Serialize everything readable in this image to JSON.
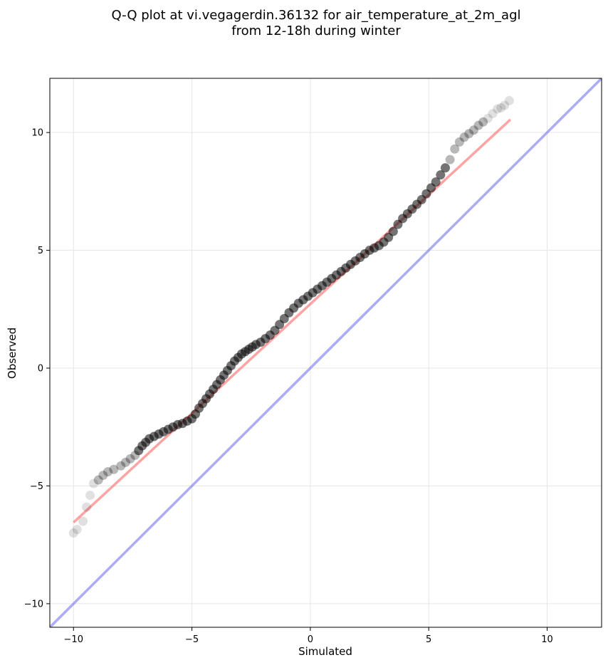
{
  "chart_data": {
    "type": "scatter",
    "title_lines": [
      "Q-Q plot at vi.vegagerdin.36132 for air_temperature_at_2m_agl",
      "from 12-18h during winter"
    ],
    "xlabel": "Simulated",
    "ylabel": "Observed",
    "xlim": [
      -11,
      12.3
    ],
    "ylim": [
      -11,
      12.3
    ],
    "xticks": [
      -10,
      -5,
      0,
      5,
      10
    ],
    "yticks": [
      -10,
      -5,
      0,
      5,
      10
    ],
    "xtick_labels": [
      "−10",
      "−5",
      "0",
      "5",
      "10"
    ],
    "ytick_labels": [
      "−10",
      "−5",
      "0",
      "5",
      "10"
    ],
    "grid": true,
    "colors": {
      "points": "#000000",
      "fit_line": "#ff6666",
      "identity_line": "#6666ee",
      "grid": "#e6e6e6"
    },
    "reference_lines": [
      {
        "kind": "fit",
        "x": [
          -10,
          8.45
        ],
        "y": [
          -6.55,
          10.55
        ]
      },
      {
        "kind": "identity",
        "x": [
          -11,
          12.3
        ],
        "y": [
          -11,
          12.3
        ]
      }
    ],
    "quantile_points": {
      "x": [
        -10.0,
        -9.85,
        -9.6,
        -9.45,
        -9.3,
        -9.15,
        -8.95,
        -8.75,
        -8.55,
        -8.3,
        -8.0,
        -7.8,
        -7.6,
        -7.4,
        -7.25,
        -7.1,
        -6.95,
        -6.8,
        -6.6,
        -6.4,
        -6.2,
        -6.0,
        -5.8,
        -5.6,
        -5.4,
        -5.2,
        -5.0,
        -4.85,
        -4.7,
        -4.55,
        -4.4,
        -4.25,
        -4.1,
        -3.95,
        -3.8,
        -3.65,
        -3.5,
        -3.35,
        -3.2,
        -3.05,
        -2.9,
        -2.75,
        -2.6,
        -2.45,
        -2.3,
        -2.1,
        -1.9,
        -1.7,
        -1.5,
        -1.3,
        -1.1,
        -0.9,
        -0.7,
        -0.5,
        -0.3,
        -0.1,
        0.1,
        0.3,
        0.5,
        0.7,
        0.9,
        1.1,
        1.3,
        1.5,
        1.7,
        1.9,
        2.1,
        2.3,
        2.5,
        2.7,
        2.9,
        3.1,
        3.3,
        3.5,
        3.7,
        3.9,
        4.1,
        4.3,
        4.5,
        4.7,
        4.9,
        5.1,
        5.3,
        5.5,
        5.7,
        5.9,
        6.1,
        6.3,
        6.5,
        6.7,
        6.9,
        7.1,
        7.3,
        7.5,
        7.7,
        7.9,
        8.05,
        8.2,
        8.4
      ],
      "y": [
        -7.0,
        -6.85,
        -6.5,
        -5.9,
        -5.4,
        -4.9,
        -4.75,
        -4.55,
        -4.4,
        -4.3,
        -4.15,
        -4.0,
        -3.85,
        -3.7,
        -3.5,
        -3.3,
        -3.15,
        -3.0,
        -2.9,
        -2.8,
        -2.7,
        -2.6,
        -2.5,
        -2.4,
        -2.35,
        -2.25,
        -2.15,
        -1.95,
        -1.7,
        -1.5,
        -1.3,
        -1.1,
        -0.9,
        -0.7,
        -0.5,
        -0.3,
        -0.1,
        0.1,
        0.3,
        0.45,
        0.6,
        0.7,
        0.8,
        0.9,
        1.0,
        1.1,
        1.25,
        1.4,
        1.6,
        1.85,
        2.1,
        2.35,
        2.55,
        2.75,
        2.9,
        3.05,
        3.2,
        3.35,
        3.5,
        3.65,
        3.8,
        3.95,
        4.1,
        4.25,
        4.4,
        4.55,
        4.7,
        4.85,
        5.0,
        5.1,
        5.2,
        5.35,
        5.55,
        5.8,
        6.1,
        6.35,
        6.55,
        6.75,
        6.95,
        7.15,
        7.4,
        7.65,
        7.9,
        8.2,
        8.5,
        8.85,
        9.3,
        9.6,
        9.8,
        9.95,
        10.1,
        10.3,
        10.45,
        10.6,
        10.8,
        11.0,
        11.05,
        11.15,
        11.35
      ]
    }
  }
}
